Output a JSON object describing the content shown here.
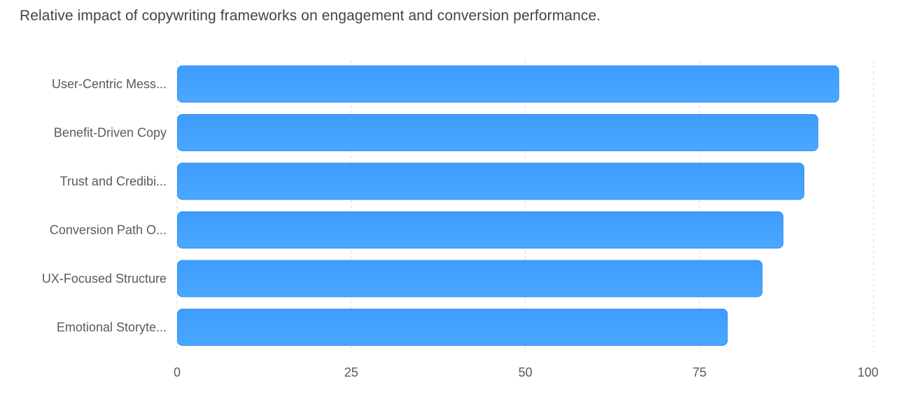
{
  "header": {
    "subtitle": "Relative impact of copywriting frameworks on engagement and conversion performance."
  },
  "chart_data": {
    "type": "bar",
    "orientation": "horizontal",
    "categories": [
      "User-Centric Mess...",
      "Benefit-Driven Copy",
      "Trust and Credibi...",
      "Conversion Path O...",
      "UX-Focused Structure",
      "Emotional Storyte..."
    ],
    "values": [
      95,
      92,
      90,
      87,
      84,
      79
    ],
    "xlim": [
      0,
      100
    ],
    "x_ticks": [
      0,
      25,
      50,
      75,
      100
    ],
    "x_tick_labels": [
      "0",
      "25",
      "50",
      "75",
      "100"
    ],
    "grid": true,
    "colors": {
      "bar_top": "#3d9cfd",
      "bar_bottom": "#4aa8ff",
      "bar_stroke": "#2f8ff5",
      "grid": "#d7dbe0"
    }
  }
}
